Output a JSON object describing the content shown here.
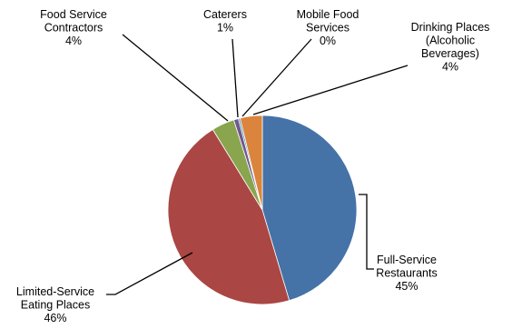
{
  "chart_data": {
    "type": "pie",
    "title": "",
    "slices": [
      {
        "label_lines": [
          "Full-Service",
          "Restaurants"
        ],
        "percent_label": "45%",
        "value": 45.4,
        "color": "#4572A7"
      },
      {
        "label_lines": [
          "Limited-Service",
          "Eating Places"
        ],
        "percent_label": "46%",
        "value": 45.8,
        "color": "#AA4643"
      },
      {
        "label_lines": [
          "Food Service",
          "Contractors"
        ],
        "percent_label": "4%",
        "value": 3.9,
        "color": "#89A54E"
      },
      {
        "label_lines": [
          "Caterers"
        ],
        "percent_label": "1%",
        "value": 0.8,
        "color": "#71588F"
      },
      {
        "label_lines": [
          "Mobile Food",
          "Services"
        ],
        "percent_label": "0%",
        "value": 0.3,
        "color": "#4198AF"
      },
      {
        "label_lines": [
          "Drinking Places",
          "(Alcoholic",
          "Beverages)"
        ],
        "percent_label": "4%",
        "value": 3.8,
        "color": "#DB843D"
      }
    ],
    "start_angle_deg": 0,
    "direction": "clockwise",
    "legend": "none",
    "data_labels": "outside with leader lines"
  }
}
